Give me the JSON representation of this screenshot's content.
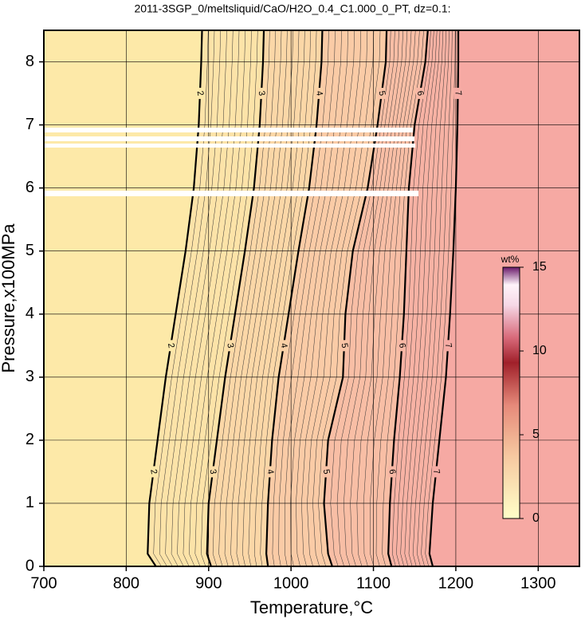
{
  "chart_data": {
    "type": "contour",
    "title": "2011-3SGP_0/meltsliquid/CaO/H2O_0.4_C1.000_0_PT, dz=0.1:",
    "x_label": "Temperature,°C",
    "y_label": "Pressure,x100MPa",
    "xlim": [
      700,
      1350
    ],
    "xticks": [
      700,
      800,
      900,
      1000,
      1100,
      1200,
      1300
    ],
    "ylim": [
      0,
      8.5
    ],
    "yticks": [
      0,
      1,
      2,
      3,
      4,
      5,
      6,
      7,
      8
    ],
    "grid": true,
    "y": [
      0,
      0.2,
      1,
      2,
      3,
      4,
      5,
      6,
      7,
      8,
      8.5
    ],
    "contours": [
      {
        "level": 2,
        "x": [
          836,
          826,
          828,
          838,
          848,
          860,
          872,
          882,
          888,
          891,
          892
        ]
      },
      {
        "level": 3,
        "x": [
          903,
          898,
          900,
          910,
          920,
          932,
          944,
          955,
          962,
          966,
          967
        ]
      },
      {
        "level": 4,
        "x": [
          972,
          970,
          972,
          977,
          985,
          997,
          1009,
          1022,
          1031,
          1037,
          1038
        ]
      },
      {
        "level": 5,
        "x": [
          1050,
          1045,
          1040,
          1045,
          1063,
          1066,
          1075,
          1093,
          1105,
          1115,
          1116
        ]
      },
      {
        "level": 6,
        "x": [
          1122,
          1118,
          1120,
          1125,
          1132,
          1137,
          1140,
          1143,
          1150,
          1163,
          1166
        ]
      },
      {
        "level": 7,
        "x": [
          1172,
          1168,
          1172,
          1180,
          1188,
          1193,
          1197,
          1200,
          1202,
          1203,
          1203
        ]
      }
    ],
    "colorbar": {
      "label": "wt%",
      "lim": [
        0,
        15
      ],
      "ticks": [
        0,
        5,
        10,
        15
      ]
    }
  }
}
